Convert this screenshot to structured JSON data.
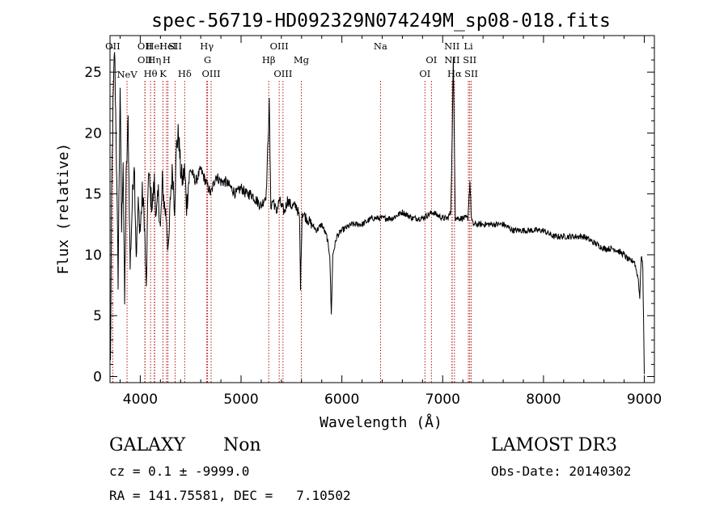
{
  "chart_data": {
    "type": "line",
    "title": "spec-56719-HD092329N074249M_sp08-018.fits",
    "xlabel": "Wavelength (Å)",
    "ylabel": "Flux (relative)",
    "xlim": [
      3700,
      9100
    ],
    "ylim": [
      -0.5,
      28
    ],
    "xticks": [
      4000,
      5000,
      6000,
      7000,
      8000,
      9000
    ],
    "yticks": [
      0,
      5,
      10,
      15,
      20,
      25
    ],
    "grid": false,
    "line_color": "#000000",
    "marker_color": "#aa0000",
    "anchors": [
      [
        3705,
        1
      ],
      [
        3715,
        14
      ],
      [
        3730,
        22
      ],
      [
        3745,
        27
      ],
      [
        3760,
        20
      ],
      [
        3780,
        8
      ],
      [
        3800,
        24
      ],
      [
        3815,
        12
      ],
      [
        3830,
        18
      ],
      [
        3845,
        6
      ],
      [
        3860,
        16
      ],
      [
        3880,
        21
      ],
      [
        3900,
        9
      ],
      [
        3920,
        14
      ],
      [
        3940,
        18
      ],
      [
        3960,
        10
      ],
      [
        3980,
        14
      ],
      [
        4000,
        12
      ],
      [
        4020,
        15
      ],
      [
        4040,
        13
      ],
      [
        4060,
        7
      ],
      [
        4080,
        17
      ],
      [
        4100,
        15
      ],
      [
        4120,
        14
      ],
      [
        4140,
        16
      ],
      [
        4160,
        13
      ],
      [
        4180,
        15
      ],
      [
        4200,
        12
      ],
      [
        4220,
        16
      ],
      [
        4240,
        14
      ],
      [
        4260,
        13
      ],
      [
        4280,
        10
      ],
      [
        4300,
        15
      ],
      [
        4320,
        17
      ],
      [
        4340,
        14
      ],
      [
        4360,
        19
      ],
      [
        4380,
        20
      ],
      [
        4400,
        17
      ],
      [
        4420,
        16
      ],
      [
        4440,
        17
      ],
      [
        4460,
        14
      ],
      [
        4480,
        16
      ],
      [
        4500,
        17
      ],
      [
        4550,
        16
      ],
      [
        4600,
        17
      ],
      [
        4650,
        16
      ],
      [
        4700,
        15
      ],
      [
        4750,
        16.5
      ],
      [
        4800,
        16
      ],
      [
        4850,
        16
      ],
      [
        4900,
        15.5
      ],
      [
        4950,
        15
      ],
      [
        5000,
        15.5
      ],
      [
        5050,
        15
      ],
      [
        5100,
        15
      ],
      [
        5150,
        14.5
      ],
      [
        5200,
        14
      ],
      [
        5250,
        15
      ],
      [
        5280,
        22.5
      ],
      [
        5295,
        14
      ],
      [
        5320,
        14.5
      ],
      [
        5350,
        13.5
      ],
      [
        5380,
        14.5
      ],
      [
        5400,
        14
      ],
      [
        5430,
        13.5
      ],
      [
        5460,
        14.5
      ],
      [
        5500,
        14
      ],
      [
        5550,
        14
      ],
      [
        5580,
        13
      ],
      [
        5590,
        7.5
      ],
      [
        5605,
        13.5
      ],
      [
        5650,
        13
      ],
      [
        5700,
        12.5
      ],
      [
        5750,
        12
      ],
      [
        5800,
        12.5
      ],
      [
        5850,
        11.5
      ],
      [
        5880,
        10
      ],
      [
        5895,
        5
      ],
      [
        5910,
        10
      ],
      [
        5950,
        11.5
      ],
      [
        6000,
        12
      ],
      [
        6100,
        12.5
      ],
      [
        6200,
        12.5
      ],
      [
        6300,
        13
      ],
      [
        6400,
        13
      ],
      [
        6500,
        13
      ],
      [
        6600,
        13.5
      ],
      [
        6700,
        13
      ],
      [
        6800,
        13
      ],
      [
        6900,
        13.5
      ],
      [
        7000,
        13
      ],
      [
        7050,
        13
      ],
      [
        7080,
        13.5
      ],
      [
        7095,
        20
      ],
      [
        7105,
        26
      ],
      [
        7115,
        20
      ],
      [
        7125,
        13
      ],
      [
        7150,
        13
      ],
      [
        7200,
        13
      ],
      [
        7250,
        13
      ],
      [
        7270,
        16
      ],
      [
        7285,
        13
      ],
      [
        7300,
        12.5
      ],
      [
        7400,
        12.5
      ],
      [
        7500,
        12.5
      ],
      [
        7600,
        12.5
      ],
      [
        7700,
        12
      ],
      [
        7800,
        12
      ],
      [
        7900,
        12
      ],
      [
        8000,
        12
      ],
      [
        8100,
        11.5
      ],
      [
        8200,
        11.5
      ],
      [
        8300,
        11.5
      ],
      [
        8400,
        11.5
      ],
      [
        8500,
        11
      ],
      [
        8600,
        10.5
      ],
      [
        8700,
        10.5
      ],
      [
        8800,
        10
      ],
      [
        8850,
        9.5
      ],
      [
        8900,
        9.5
      ],
      [
        8940,
        8
      ],
      [
        8955,
        6.5
      ],
      [
        8970,
        10
      ],
      [
        8985,
        9
      ],
      [
        9000,
        0.2
      ]
    ],
    "lines": [
      {
        "w": 3727,
        "label": "OII",
        "row": 0
      },
      {
        "w": 3869,
        "label": "NeV",
        "row": 3
      },
      {
        "w": 4046,
        "label": "OII",
        "row": 0
      },
      {
        "w": 4047,
        "label": "OII",
        "row": 1
      },
      {
        "w": 4102,
        "label": "Hθ",
        "row": 2
      },
      {
        "w": 4140,
        "label": "Hη",
        "row": 1
      },
      {
        "w": 4143,
        "label": "HeI",
        "row": 0
      },
      {
        "w": 4226,
        "label": "K",
        "row": 2
      },
      {
        "w": 4261,
        "label": "H",
        "row": 1
      },
      {
        "w": 4275,
        "label": "HeI",
        "row": 0
      },
      {
        "w": 4346,
        "label": "SII",
        "row": 0
      },
      {
        "w": 4441,
        "label": "Hδ",
        "row": 2
      },
      {
        "w": 4660,
        "label": "Hγ",
        "row": 0
      },
      {
        "w": 4668,
        "label": "G",
        "row": 1
      },
      {
        "w": 4703,
        "label": "OIII",
        "row": 2
      },
      {
        "w": 5274,
        "label": "Hβ",
        "row": 1
      },
      {
        "w": 5378,
        "label": "OIII",
        "row": 0
      },
      {
        "w": 5416,
        "label": "OIII",
        "row": 2
      },
      {
        "w": 5597,
        "label": "Mg",
        "row": 1
      },
      {
        "w": 6383,
        "label": "Na",
        "row": 0
      },
      {
        "w": 6824,
        "label": "OI",
        "row": 2
      },
      {
        "w": 6888,
        "label": "OI",
        "row": 1
      },
      {
        "w": 7092,
        "label": "NII",
        "row": 0
      },
      {
        "w": 7094,
        "label": "NII",
        "row": 1
      },
      {
        "w": 7117,
        "label": "Hα",
        "row": 2
      },
      {
        "w": 7255,
        "label": "Li",
        "row": 0
      },
      {
        "w": 7268,
        "label": "SII",
        "row": 1
      },
      {
        "w": 7283,
        "label": "SII",
        "row": 2
      }
    ]
  },
  "info": {
    "class": "GALAXY",
    "subclass": "Non",
    "survey": "LAMOST DR3",
    "cz": "cz = 0.1 ± -9999.0",
    "obs_date": "Obs-Date: 20140302",
    "coords": "RA = 141.75581, DEC =   7.10502"
  }
}
